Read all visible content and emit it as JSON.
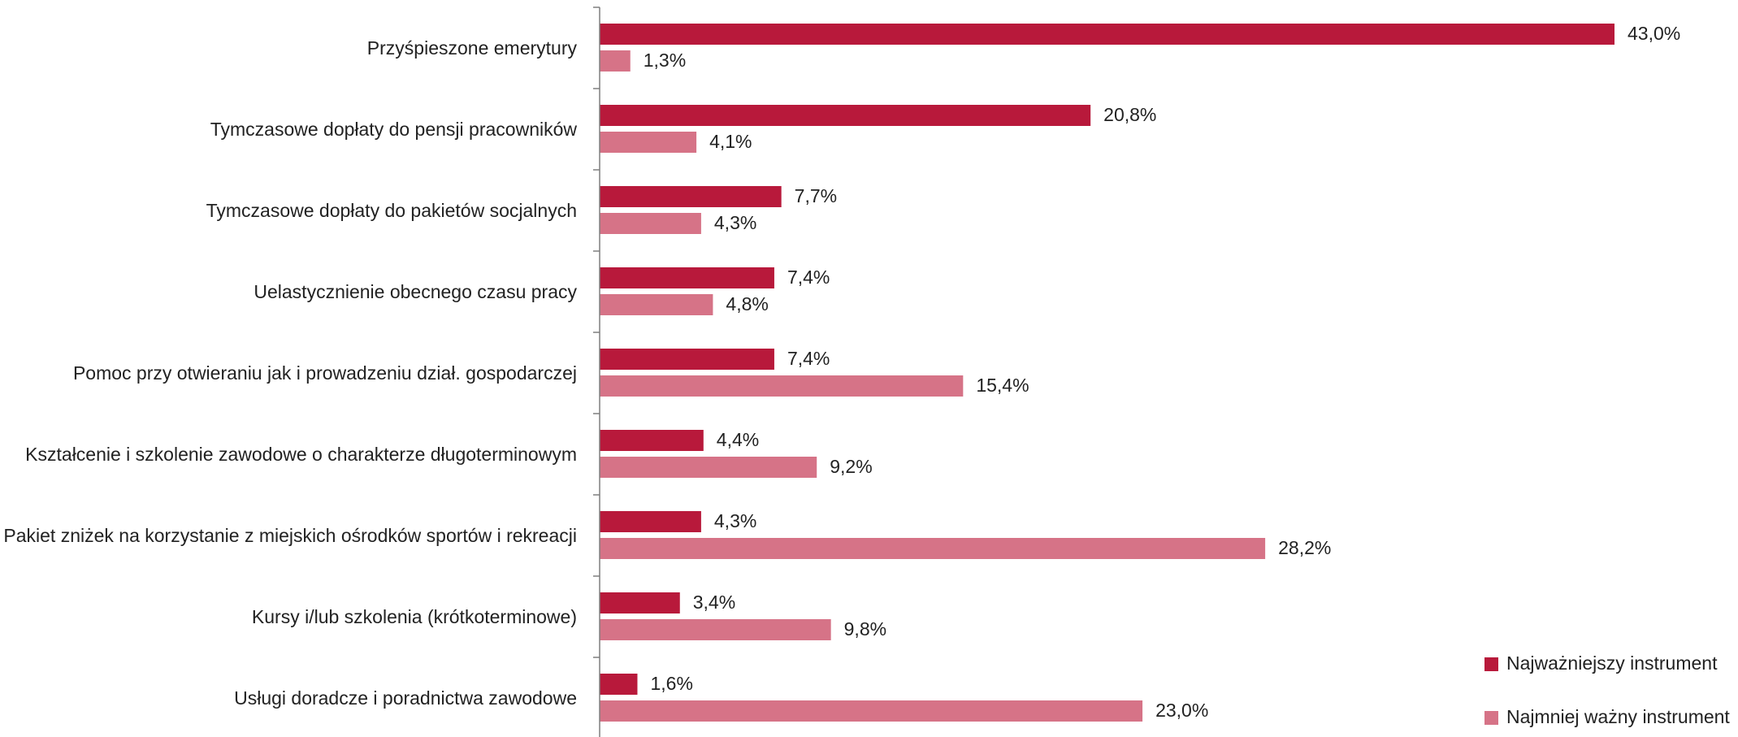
{
  "chart_data": {
    "type": "bar",
    "orientation": "horizontal",
    "categories": [
      "Przyśpieszone emerytury",
      "Tymczasowe dopłaty do pensji pracowników",
      "Tymczasowe dopłaty do pakietów socjalnych",
      "Uelastycznienie obecnego czasu pracy",
      "Pomoc przy otwieraniu jak i prowadzeniu dział. gospodarczej",
      "Kształcenie i szkolenie zawodowe o charakterze długoterminowym",
      "Pakiet zniżek na korzystanie z miejskich ośrodków sportów i rekreacji",
      "Kursy i/lub szkolenia (krótkoterminowe)",
      "Usługi doradcze i poradnictwa zawodowe"
    ],
    "series": [
      {
        "name": "Najważniejszy instrument",
        "color": "#b8193b",
        "values": [
          43.0,
          20.8,
          7.7,
          7.4,
          7.4,
          4.4,
          4.3,
          3.4,
          1.6
        ],
        "labels": [
          "43,0%",
          "20,8%",
          "7,7%",
          "7,4%",
          "7,4%",
          "4,4%",
          "4,3%",
          "3,4%",
          "1,6%"
        ]
      },
      {
        "name": "Najmniej ważny instrument",
        "color": "#d67387",
        "values": [
          1.3,
          4.1,
          4.3,
          4.8,
          15.4,
          9.2,
          28.2,
          9.8,
          23.0
        ],
        "labels": [
          "1,3%",
          "4,1%",
          "4,3%",
          "4,8%",
          "15,4%",
          "9,2%",
          "28,2%",
          "9,8%",
          "23,0%"
        ]
      }
    ],
    "unit": "%",
    "xlim": [
      0,
      43
    ],
    "grid": false,
    "legend_position": "bottom-right",
    "axis_color": "#7f7f7f"
  }
}
